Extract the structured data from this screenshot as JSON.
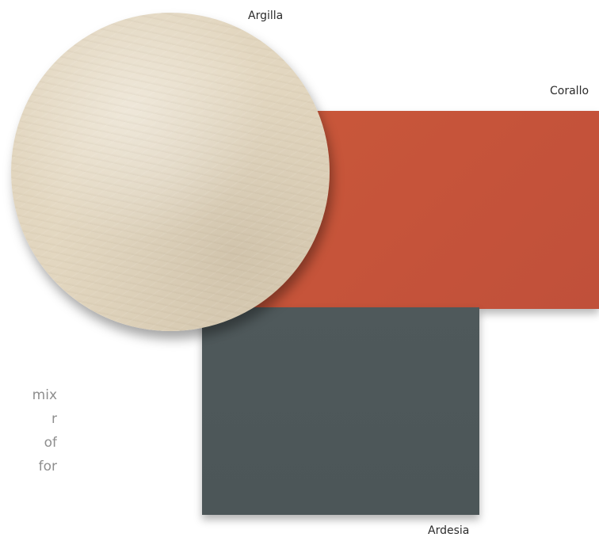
{
  "side_text": {
    "lines": [
      "mix",
      "r",
      "of",
      "for"
    ]
  },
  "swatches": {
    "argilla": {
      "label": "Argilla",
      "color": "#e4d9c3"
    },
    "corallo": {
      "label": "Corallo",
      "color": "#c6553a"
    },
    "ardesia": {
      "label": "Ardesia",
      "color": "#4d5759"
    }
  }
}
